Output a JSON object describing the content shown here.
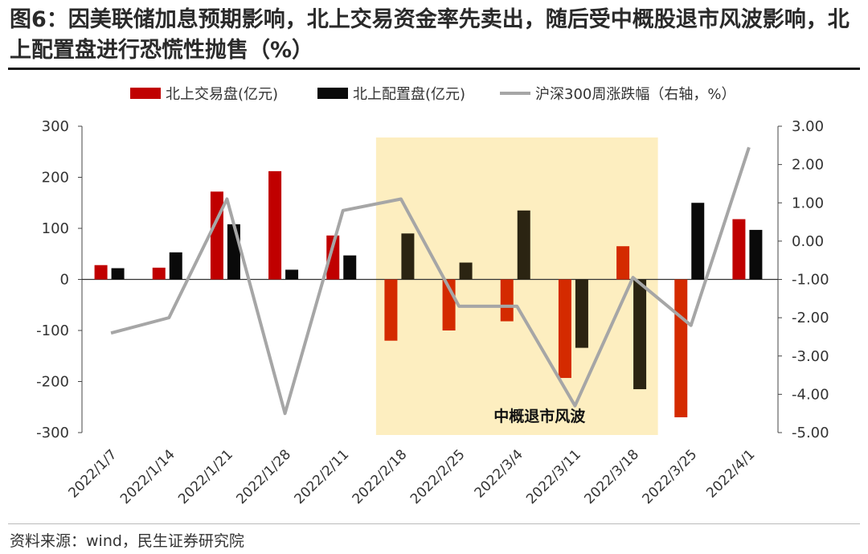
{
  "title": "图6：因美联储加息预期影响，北上交易资金率先卖出，随后受中概股退市风波影响，北上配置盘进行恐慌性抛售（%）",
  "source": "资料来源：wind，民生证券研究院",
  "chart_data": {
    "type": "bar",
    "categories": [
      "2022/1/7",
      "2022/1/14",
      "2022/1/21",
      "2022/1/28",
      "2022/2/11",
      "2022/2/18",
      "2022/2/25",
      "2022/3/4",
      "2022/3/11",
      "2022/3/18",
      "2022/3/25",
      "2022/4/1"
    ],
    "series": [
      {
        "name": "北上交易盘(亿元)",
        "type": "bar",
        "axis": "left",
        "color": "#c00000",
        "values": [
          28,
          23,
          172,
          212,
          86,
          -120,
          -100,
          -82,
          -193,
          65,
          -270,
          118
        ]
      },
      {
        "name": "北上配置盘(亿元)",
        "type": "bar",
        "axis": "left",
        "color": "#0a0a0a",
        "values": [
          22,
          53,
          108,
          19,
          47,
          90,
          33,
          135,
          -134,
          -215,
          150,
          97
        ]
      },
      {
        "name": "沪深300周涨跌幅（右轴，%）",
        "type": "line",
        "axis": "right",
        "color": "#a6a6a6",
        "values": [
          -2.4,
          -2.0,
          1.1,
          -4.5,
          0.8,
          1.1,
          -1.7,
          -1.7,
          -4.3,
          -0.95,
          -2.2,
          2.45
        ]
      }
    ],
    "left_axis": {
      "min": -300,
      "max": 300,
      "ticks": [
        "300",
        "200",
        "100",
        "0",
        "-100",
        "-200",
        "-300"
      ]
    },
    "right_axis": {
      "min": -5,
      "max": 3,
      "ticks": [
        "3.00",
        "2.00",
        "1.00",
        "0.00",
        "-1.00",
        "-2.00",
        "-3.00",
        "-4.00",
        "-5.00"
      ]
    },
    "shaded_range": {
      "from": "2022/2/18",
      "to": "2022/3/18",
      "color": "#fdeec0",
      "label": "中概退市风波"
    },
    "highlight_colors": {
      "positive_red": "#c00000",
      "negative_red": "#d42a00",
      "shaded_black": "#2b2412"
    },
    "legend_position": "top",
    "grid": false
  }
}
